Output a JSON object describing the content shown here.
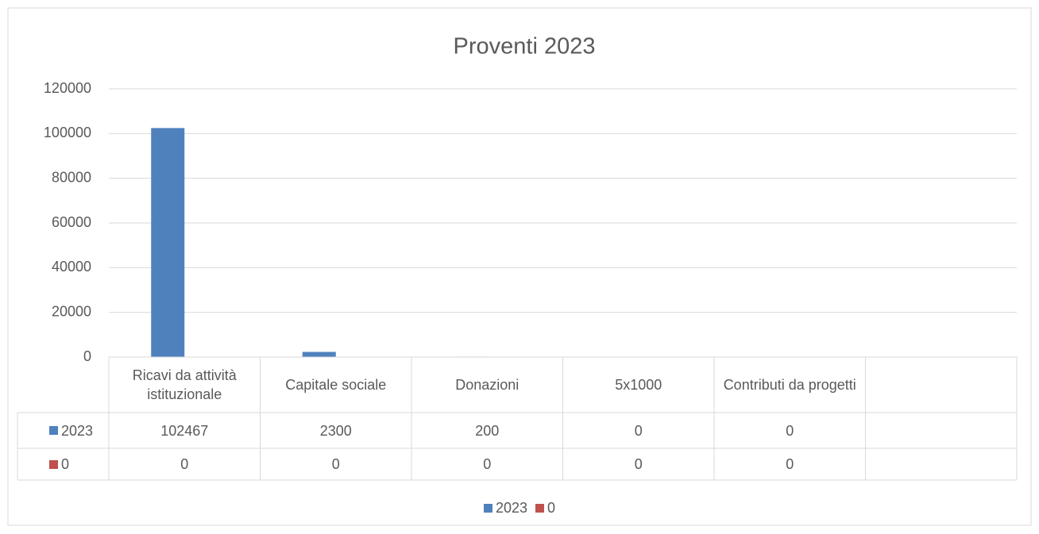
{
  "chart_data": {
    "type": "bar",
    "title": "Proventi  2023",
    "categories": [
      "Ricavi da attività istituzionale",
      "Capitale sociale",
      "Donazioni",
      "5x1000",
      "Contributi da progetti",
      null
    ],
    "series": [
      {
        "name": "2023",
        "color": "#4f81bd",
        "values": [
          102467,
          2300,
          200,
          0,
          0,
          null
        ]
      },
      {
        "name": "0",
        "color": "#c0504d",
        "values": [
          0,
          0,
          0,
          0,
          0,
          null
        ]
      }
    ],
    "ylim": [
      0,
      120000
    ],
    "yticks": [
      0,
      20000,
      40000,
      60000,
      80000,
      100000,
      120000
    ],
    "grid": true,
    "data_table": true,
    "legend": "bottom"
  }
}
